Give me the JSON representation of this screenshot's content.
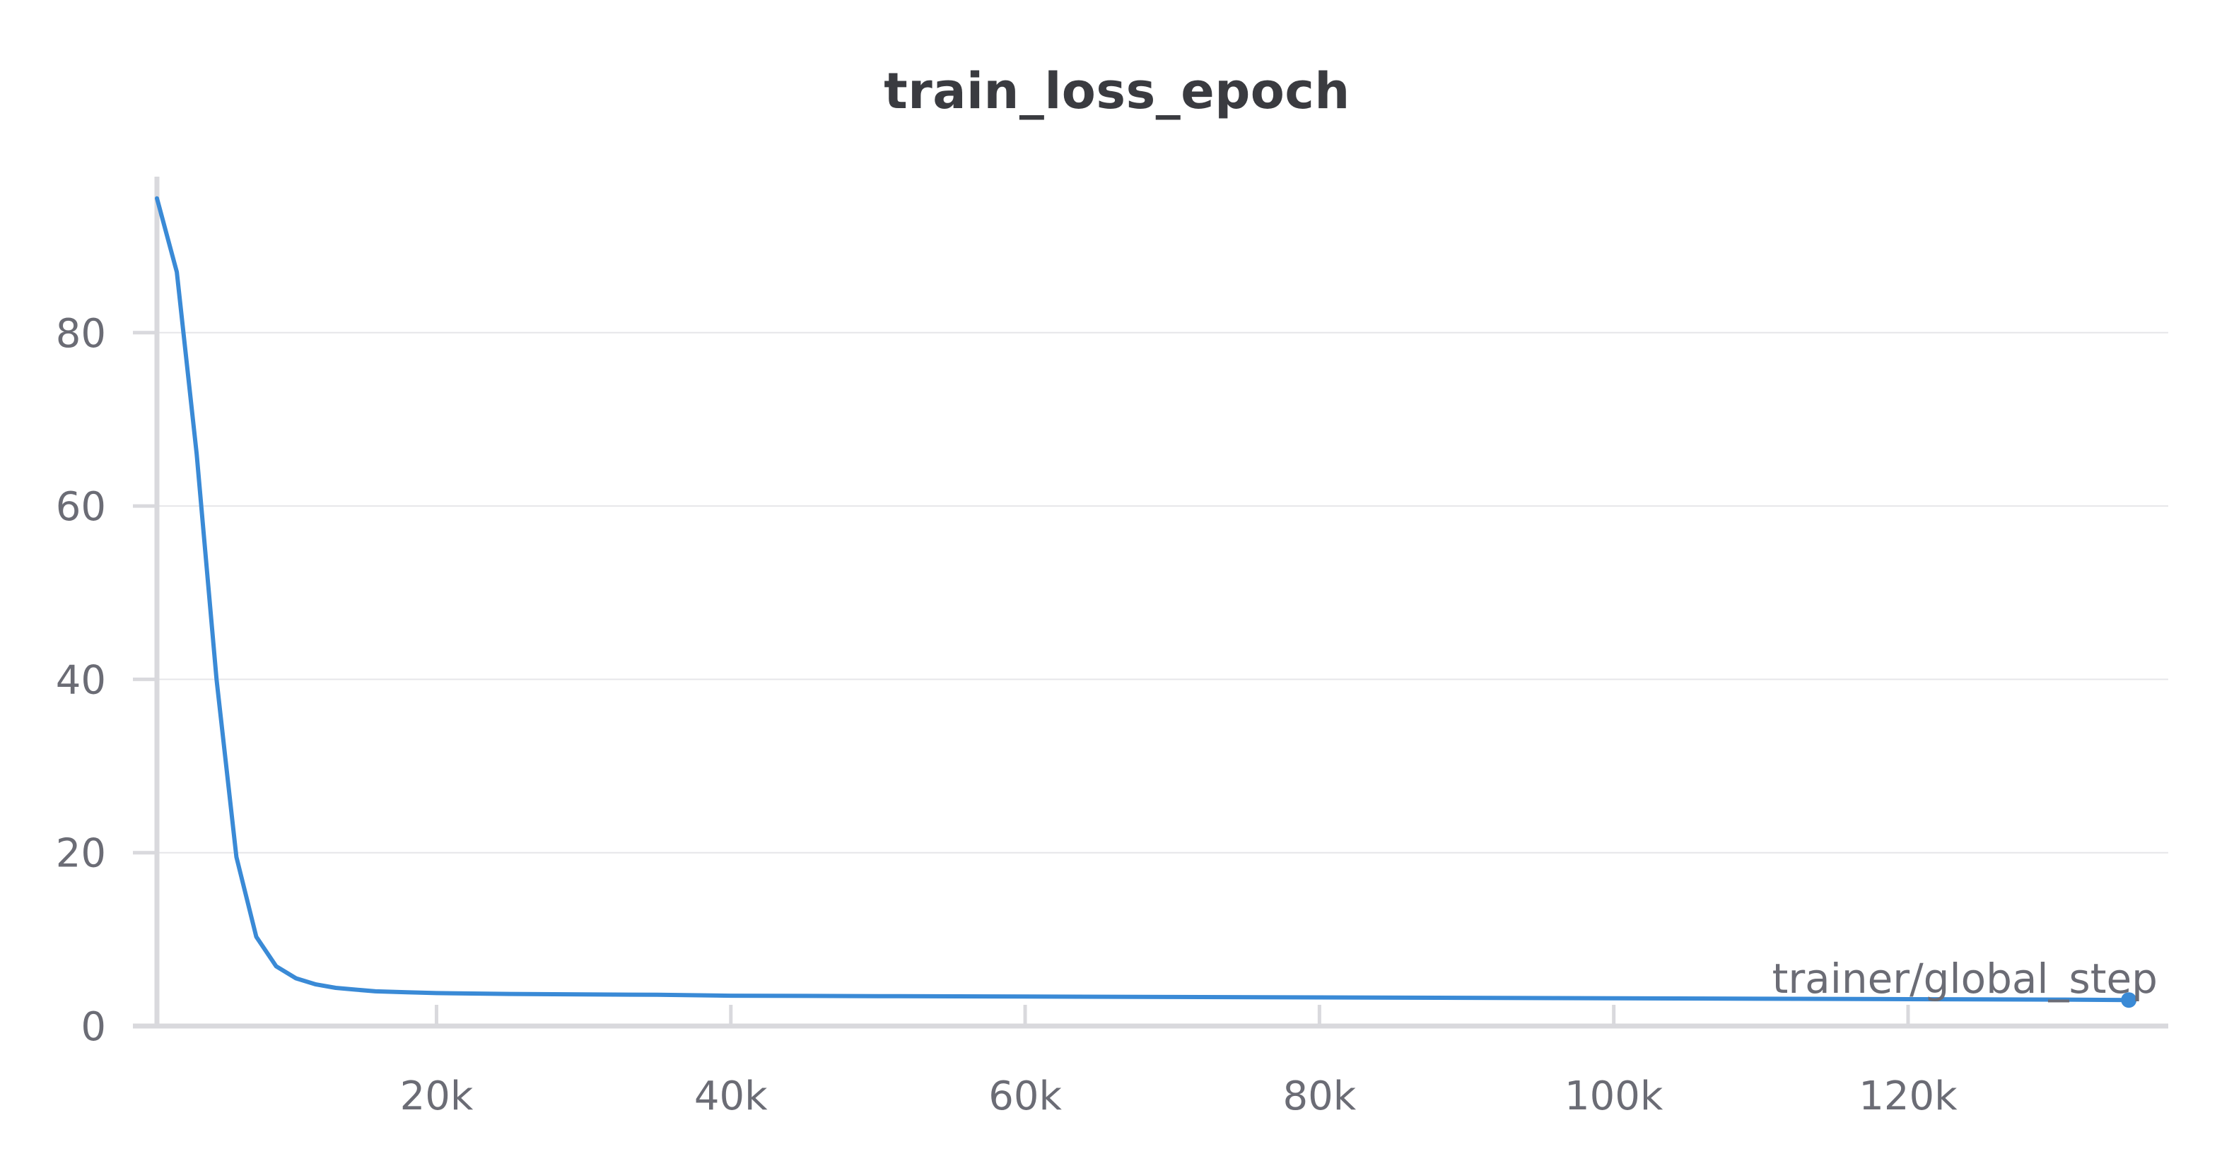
{
  "chart_data": {
    "type": "line",
    "title": "train_loss_epoch",
    "xlabel": "trainer/global_step",
    "ylabel": "",
    "xlim": [
      1000,
      136000
    ],
    "ylim": [
      0,
      98
    ],
    "x_ticks": [
      {
        "value": 20000,
        "label": "20k"
      },
      {
        "value": 40000,
        "label": "40k"
      },
      {
        "value": 60000,
        "label": "60k"
      },
      {
        "value": 80000,
        "label": "80k"
      },
      {
        "value": 100000,
        "label": "100k"
      },
      {
        "value": 120000,
        "label": "120k"
      }
    ],
    "y_ticks": [
      {
        "value": 0,
        "label": "0"
      },
      {
        "value": 20,
        "label": "20"
      },
      {
        "value": 40,
        "label": "40"
      },
      {
        "value": 60,
        "label": "60"
      },
      {
        "value": 80,
        "label": "80"
      }
    ],
    "grid": true,
    "series": [
      {
        "color": "#3a8ad6",
        "x": [
          1000,
          2350,
          3700,
          5050,
          6400,
          7750,
          9100,
          10450,
          11800,
          13150,
          14500,
          15850,
          18000,
          20000,
          25000,
          30000,
          35000,
          40000,
          50000,
          60000,
          70000,
          80000,
          90000,
          100000,
          110000,
          120000,
          130000,
          135000
        ],
        "y": [
          95.5,
          87,
          66,
          40,
          19.5,
          10.3,
          6.9,
          5.5,
          4.8,
          4.4,
          4.2,
          4.0,
          3.9,
          3.8,
          3.7,
          3.65,
          3.6,
          3.5,
          3.45,
          3.4,
          3.35,
          3.3,
          3.25,
          3.2,
          3.15,
          3.1,
          3.05,
          3.0
        ]
      }
    ]
  }
}
